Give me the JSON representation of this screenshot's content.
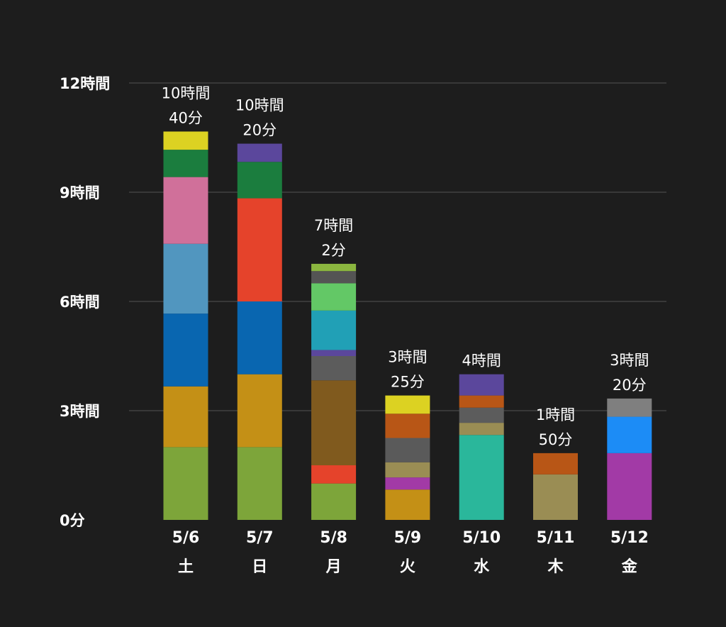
{
  "chart_data": {
    "type": "bar",
    "stacked": true,
    "y_unit": "minutes",
    "ylim": [
      0,
      720
    ],
    "grid": true,
    "y_ticks": [
      {
        "value": 0,
        "label": "0分"
      },
      {
        "value": 180,
        "label": "3時間"
      },
      {
        "value": 360,
        "label": "6時間"
      },
      {
        "value": 540,
        "label": "9時間"
      },
      {
        "value": 720,
        "label": "12時間"
      }
    ],
    "categories": [
      {
        "date": "5/6",
        "day": "土",
        "total_line1": "10時間",
        "total_line2": "40分"
      },
      {
        "date": "5/7",
        "day": "日",
        "total_line1": "10時間",
        "total_line2": "20分"
      },
      {
        "date": "5/8",
        "day": "月",
        "total_line1": "7時間",
        "total_line2": "2分"
      },
      {
        "date": "5/9",
        "day": "火",
        "total_line1": "3時間",
        "total_line2": "25分"
      },
      {
        "date": "5/10",
        "day": "水",
        "total_line1": "4時間",
        "total_line2": ""
      },
      {
        "date": "5/11",
        "day": "木",
        "total_line1": "1時間",
        "total_line2": "50分"
      },
      {
        "date": "5/12",
        "day": "金",
        "total_line1": "3時間",
        "total_line2": "20分"
      }
    ],
    "stacks": [
      [
        {
          "value": 120,
          "color": "#7da53a"
        },
        {
          "value": 100,
          "color": "#c49016"
        },
        {
          "value": 120,
          "color": "#0966b0"
        },
        {
          "value": 115,
          "color": "#5196bf"
        },
        {
          "value": 110,
          "color": "#d0709a"
        },
        {
          "value": 45,
          "color": "#1b7d3e"
        },
        {
          "value": 30,
          "color": "#dcd222"
        }
      ],
      [
        {
          "value": 120,
          "color": "#7da53a"
        },
        {
          "value": 120,
          "color": "#c49016"
        },
        {
          "value": 120,
          "color": "#0966b0"
        },
        {
          "value": 170,
          "color": "#e5432b"
        },
        {
          "value": 60,
          "color": "#1b7d3e"
        },
        {
          "value": 30,
          "color": "#5b479c"
        }
      ],
      [
        {
          "value": 60,
          "color": "#7da53a"
        },
        {
          "value": 30,
          "color": "#e5432b"
        },
        {
          "value": 140,
          "color": "#805a1e"
        },
        {
          "value": 40,
          "color": "#5c5c5c"
        },
        {
          "value": 10,
          "color": "#5b479c"
        },
        {
          "value": 65,
          "color": "#21a0b6"
        },
        {
          "value": 45,
          "color": "#63c866"
        },
        {
          "value": 20,
          "color": "#545454"
        },
        {
          "value": 12,
          "color": "#8bb63f"
        }
      ],
      [
        {
          "value": 50,
          "color": "#c49016"
        },
        {
          "value": 20,
          "color": "#a23aa6"
        },
        {
          "value": 25,
          "color": "#9a8d54"
        },
        {
          "value": 40,
          "color": "#5a5a5a"
        },
        {
          "value": 40,
          "color": "#b85616"
        },
        {
          "value": 30,
          "color": "#dcd222"
        }
      ],
      [
        {
          "value": 140,
          "color": "#2ab79b"
        },
        {
          "value": 20,
          "color": "#9a8d54"
        },
        {
          "value": 25,
          "color": "#5c5c5c"
        },
        {
          "value": 20,
          "color": "#b85616"
        },
        {
          "value": 35,
          "color": "#5b479c"
        }
      ],
      [
        {
          "value": 75,
          "color": "#9a8d54"
        },
        {
          "value": 35,
          "color": "#b85616"
        }
      ],
      [
        {
          "value": 110,
          "color": "#a23aa6"
        },
        {
          "value": 60,
          "color": "#1c8cf6"
        },
        {
          "value": 30,
          "color": "#7f7f7f"
        }
      ]
    ]
  }
}
